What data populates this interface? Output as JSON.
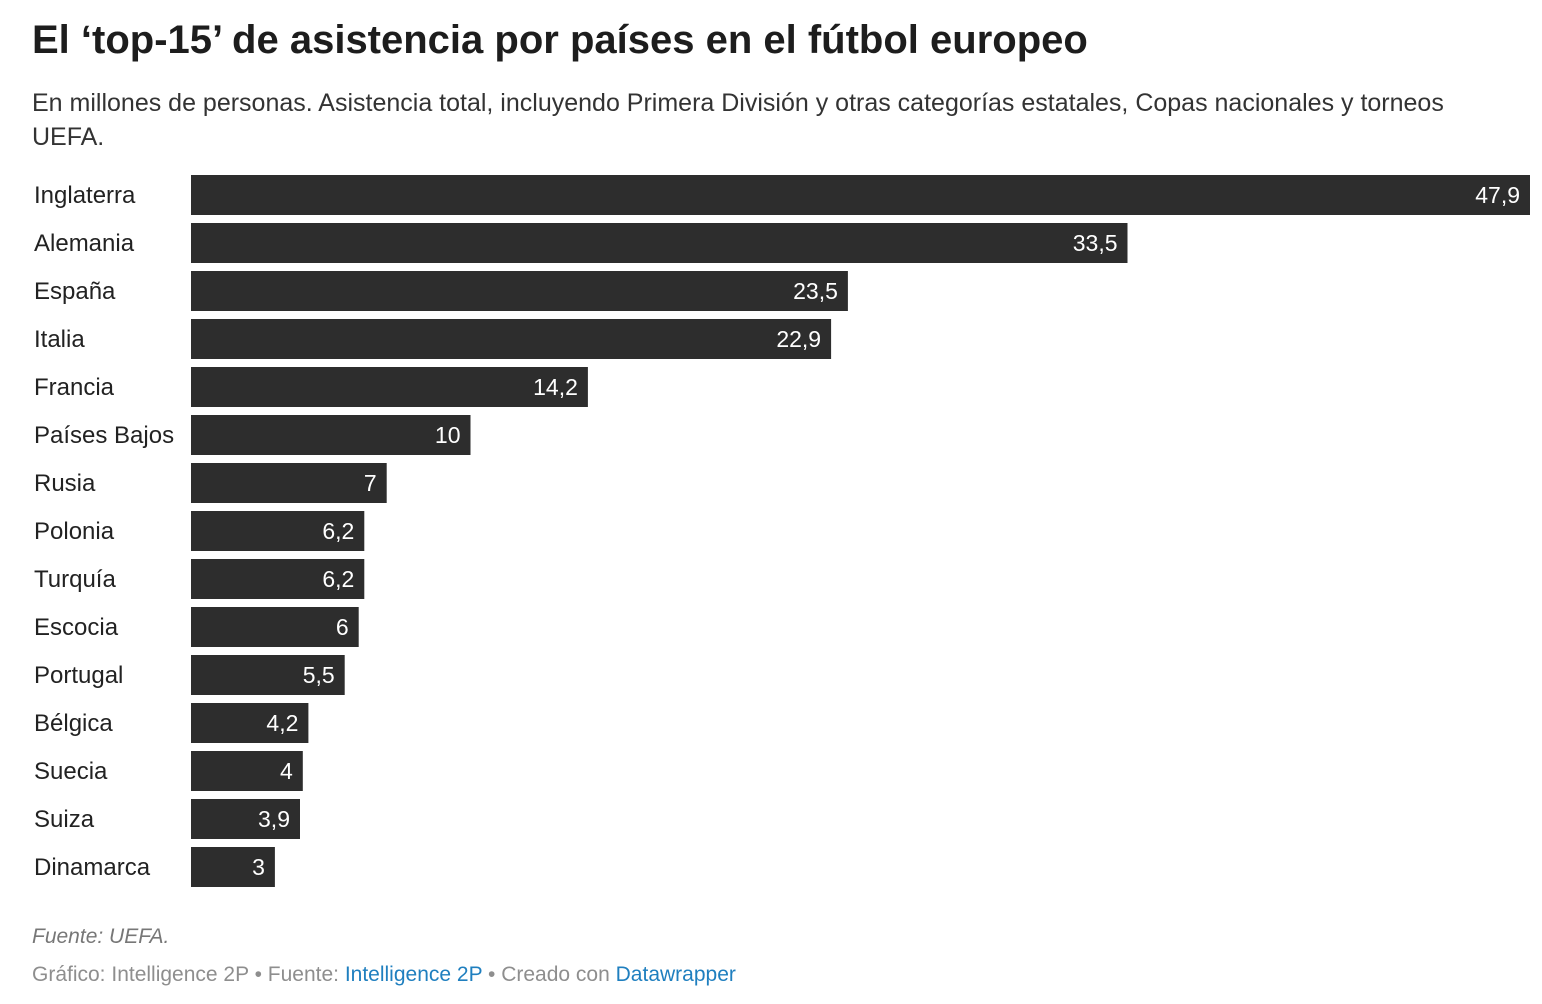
{
  "header": {
    "title": "El ‘top-15’ de asistencia por países en el fútbol europeo",
    "subtitle": "En millones de personas. Asistencia total, incluyendo Primera División y otras categorías estatales, Copas nacionales y torneos UEFA."
  },
  "chart_data": {
    "type": "bar",
    "orientation": "horizontal",
    "title": "El ‘top-15’ de asistencia por países en el fútbol europeo",
    "unit": "millones de personas",
    "bar_color": "#2d2d2d",
    "categories": [
      "Inglaterra",
      "Alemania",
      "España",
      "Italia",
      "Francia",
      "Países Bajos",
      "Rusia",
      "Polonia",
      "Turquía",
      "Escocia",
      "Portugal",
      "Bélgica",
      "Suecia",
      "Suiza",
      "Dinamarca"
    ],
    "values": [
      47.9,
      33.5,
      23.5,
      22.9,
      14.2,
      10,
      7,
      6.2,
      6.2,
      6,
      5.5,
      4.2,
      4,
      3.9,
      3
    ],
    "value_labels": [
      "47,9",
      "33,5",
      "23,5",
      "22,9",
      "14,2",
      "10",
      "7",
      "6,2",
      "6,2",
      "6",
      "5,5",
      "4,2",
      "4",
      "3,9",
      "3"
    ],
    "xlim": [
      0,
      47.9
    ]
  },
  "notes": "Fuente: UEFA.",
  "footer": {
    "graphic_prefix": "Gráfico: Intelligence 2P • Fuente: ",
    "source_link": "Intelligence 2P",
    "created_prefix": " • Creado con ",
    "tool_link": "Datawrapper"
  }
}
